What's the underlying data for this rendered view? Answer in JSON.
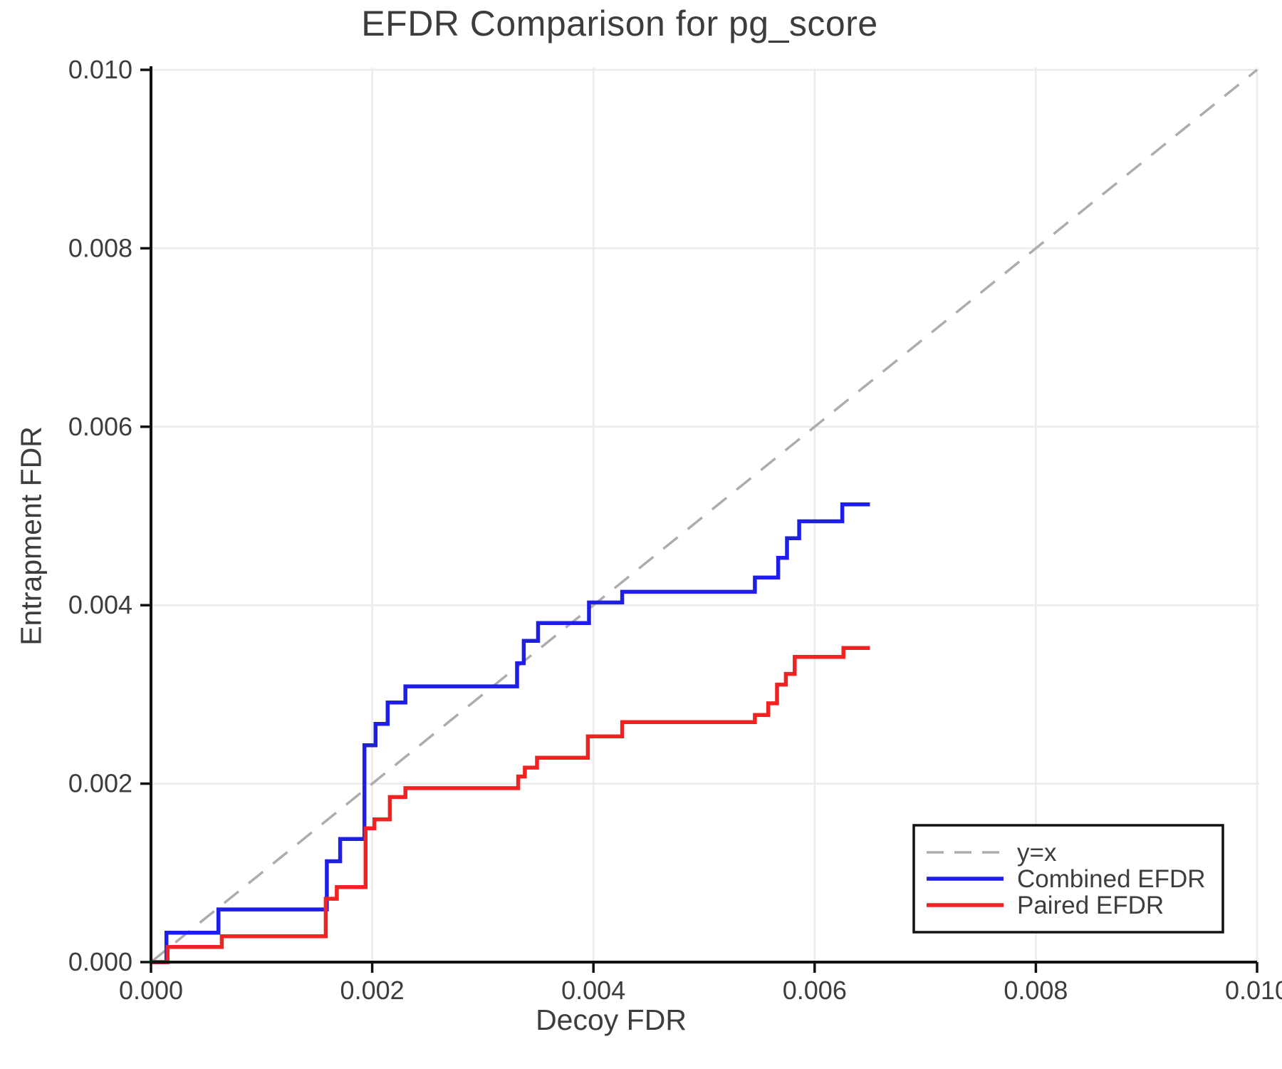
{
  "title": "EFDR Comparison for pg_score",
  "chart_data": {
    "type": "line",
    "title": "EFDR Comparison for pg_score",
    "xlabel": "Decoy FDR",
    "ylabel": "Entrapment FDR",
    "xlim": [
      0.0,
      0.01
    ],
    "ylim": [
      0.0,
      0.01
    ],
    "grid": true,
    "legend_position": "lower right",
    "colors": {
      "grid": "#ebebeb",
      "spine": "#111111",
      "text": "#3d3d3d",
      "reference": "#adadad",
      "combined": "#1e1ee6",
      "paired": "#f32222"
    },
    "xticks": [
      {
        "v": 0.0,
        "label": "0.000"
      },
      {
        "v": 0.002,
        "label": "0.002"
      },
      {
        "v": 0.004,
        "label": "0.004"
      },
      {
        "v": 0.006,
        "label": "0.006"
      },
      {
        "v": 0.008,
        "label": "0.008"
      },
      {
        "v": 0.01,
        "label": "0.010"
      }
    ],
    "yticks": [
      {
        "v": 0.0,
        "label": "0.000"
      },
      {
        "v": 0.002,
        "label": "0.002"
      },
      {
        "v": 0.004,
        "label": "0.004"
      },
      {
        "v": 0.006,
        "label": "0.006"
      },
      {
        "v": 0.008,
        "label": "0.008"
      },
      {
        "v": 0.01,
        "label": "0.010"
      }
    ],
    "reference_line": {
      "label": "y=x",
      "style": "dashed",
      "color_key": "reference",
      "from": [
        0.0,
        0.0
      ],
      "to": [
        0.01,
        0.01
      ]
    },
    "series": [
      {
        "name": "Combined EFDR",
        "slug": "combined-efdr",
        "color_key": "combined",
        "step": true,
        "points": [
          [
            0.0,
            0.0
          ],
          [
            0.00014,
            0.00033
          ],
          [
            0.00061,
            0.00059
          ],
          [
            0.00159,
            0.00113
          ],
          [
            0.00171,
            0.00138
          ],
          [
            0.00193,
            0.00243
          ],
          [
            0.00203,
            0.00267
          ],
          [
            0.00214,
            0.00291
          ],
          [
            0.0023,
            0.00309
          ],
          [
            0.00331,
            0.00335
          ],
          [
            0.00337,
            0.0036
          ],
          [
            0.0035,
            0.0038
          ],
          [
            0.00396,
            0.00403
          ],
          [
            0.00426,
            0.00415
          ],
          [
            0.00546,
            0.00431
          ],
          [
            0.00567,
            0.00453
          ],
          [
            0.00575,
            0.00475
          ],
          [
            0.00586,
            0.00494
          ],
          [
            0.00625,
            0.00513
          ],
          [
            0.0065,
            0.00513
          ]
        ]
      },
      {
        "name": "Paired EFDR",
        "slug": "paired-efdr",
        "color_key": "paired",
        "step": true,
        "points": [
          [
            0.0,
            0.0
          ],
          [
            0.00015,
            0.00017
          ],
          [
            0.00064,
            0.00029
          ],
          [
            0.00158,
            0.00071
          ],
          [
            0.00168,
            0.00084
          ],
          [
            0.00194,
            0.0015
          ],
          [
            0.00202,
            0.0016
          ],
          [
            0.00216,
            0.00185
          ],
          [
            0.0023,
            0.00195
          ],
          [
            0.00332,
            0.00208
          ],
          [
            0.00338,
            0.00218
          ],
          [
            0.00349,
            0.00229
          ],
          [
            0.00395,
            0.00253
          ],
          [
            0.00426,
            0.00269
          ],
          [
            0.00546,
            0.00277
          ],
          [
            0.00558,
            0.0029
          ],
          [
            0.00566,
            0.00311
          ],
          [
            0.00574,
            0.00323
          ],
          [
            0.00582,
            0.00342
          ],
          [
            0.00626,
            0.00352
          ],
          [
            0.0065,
            0.00352
          ]
        ]
      }
    ],
    "legend": {
      "entries": [
        "y=x",
        "Combined EFDR",
        "Paired EFDR"
      ]
    }
  }
}
